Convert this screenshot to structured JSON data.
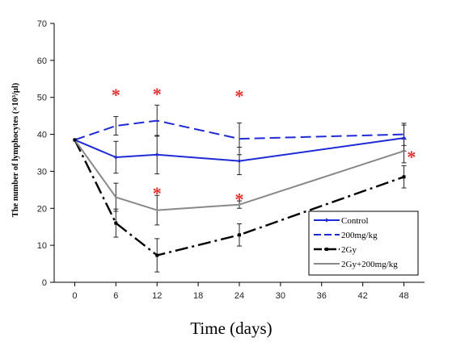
{
  "chart_data": {
    "type": "line",
    "xlabel": "Time (days)",
    "ylabel": "The number of lymphocytes (×10³/μl)",
    "xlim": [
      -3,
      51
    ],
    "ylim": [
      0,
      70
    ],
    "xticks": [
      0,
      6,
      12,
      18,
      24,
      30,
      36,
      42,
      48
    ],
    "yticks": [
      0,
      10,
      20,
      30,
      40,
      50,
      60,
      70
    ],
    "x": [
      0,
      6,
      12,
      24,
      48
    ],
    "series": [
      {
        "name": "Control",
        "values": [
          38.5,
          33.8,
          34.5,
          32.8,
          39.0
        ],
        "errors": [
          0,
          4.3,
          5.2,
          3.7,
          3.5
        ],
        "color": "#1f2bd6",
        "style": "solid",
        "marker": "diamond"
      },
      {
        "name": "200mg/kg",
        "values": [
          38.5,
          42.3,
          43.7,
          38.8,
          40.0
        ],
        "errors": [
          0,
          2.5,
          4.2,
          4.3,
          3.0
        ],
        "color": "#1f2bd6",
        "style": "dashed",
        "marker": "none"
      },
      {
        "name": "2Gy",
        "values": [
          38.5,
          16.0,
          7.3,
          12.8,
          28.5
        ],
        "errors": [
          0,
          3.8,
          4.5,
          3.0,
          3.0
        ],
        "color": "#000000",
        "style": "dashdot",
        "marker": "square"
      },
      {
        "name": "2Gy+200mg/kg",
        "values": [
          38.5,
          23.0,
          19.5,
          21.0,
          35.5
        ],
        "errors": [
          0,
          3.8,
          4.0,
          1.0,
          3.2
        ],
        "color": "#888888",
        "style": "solid",
        "marker": "none"
      }
    ],
    "annotations": [
      {
        "text": "*",
        "x": 6,
        "y": 51,
        "color": "#e03030"
      },
      {
        "text": "*",
        "x": 12,
        "y": 51.2,
        "color": "#e03030"
      },
      {
        "text": "*",
        "x": 24,
        "y": 50.7,
        "color": "#e03030"
      },
      {
        "text": "*",
        "x": 12,
        "y": 24.4,
        "color": "#e03030"
      },
      {
        "text": "*",
        "x": 24,
        "y": 22.8,
        "color": "#e03030"
      },
      {
        "text": "*",
        "x": 49.1,
        "y": 34.2,
        "color": "#e03030"
      }
    ],
    "legend_position": "bottom-right",
    "grid": false
  }
}
